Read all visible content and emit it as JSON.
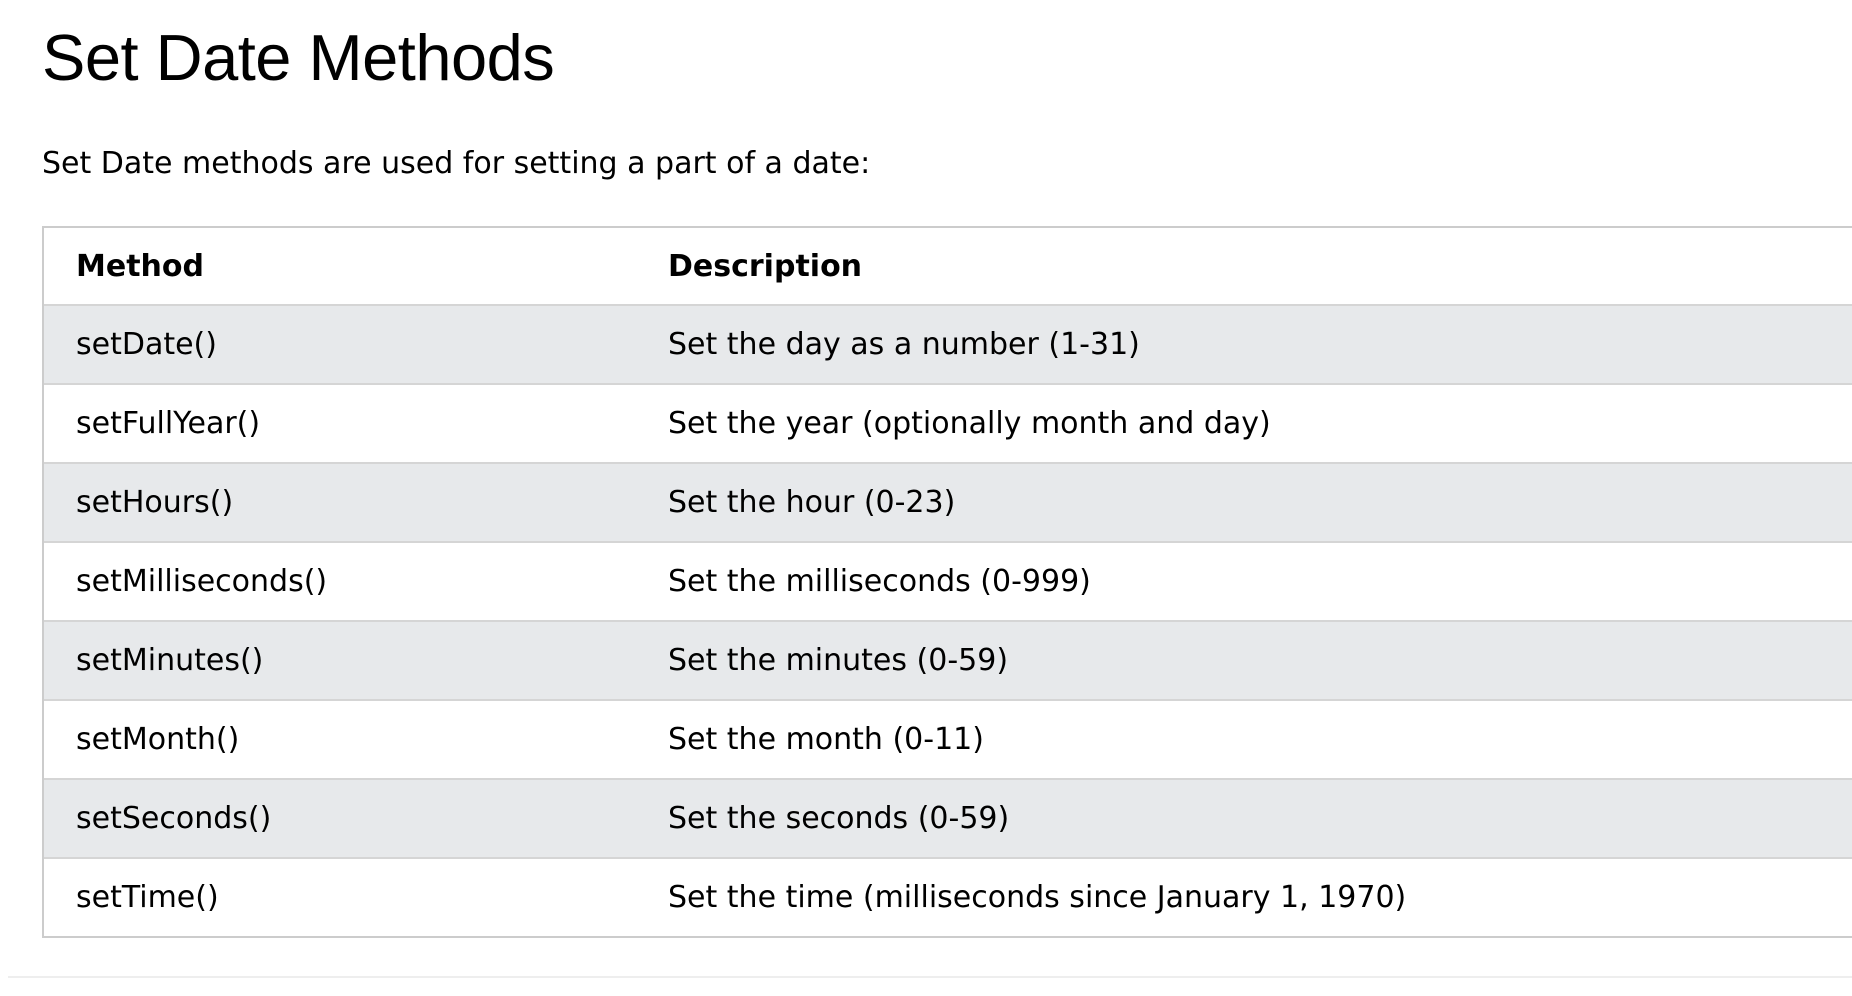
{
  "page": {
    "title": "Set Date Methods",
    "intro": "Set Date methods are used for setting a part of a date:"
  },
  "table": {
    "headers": [
      "Method",
      "Description"
    ],
    "rows": [
      {
        "method": "setDate()",
        "description": "Set the day as a number (1-31)"
      },
      {
        "method": "setFullYear()",
        "description": "Set the year (optionally month and day)"
      },
      {
        "method": "setHours()",
        "description": "Set the hour (0-23)"
      },
      {
        "method": "setMilliseconds()",
        "description": "Set the milliseconds (0-999)"
      },
      {
        "method": "setMinutes()",
        "description": "Set the minutes (0-59)"
      },
      {
        "method": "setMonth()",
        "description": "Set the month (0-11)"
      },
      {
        "method": "setSeconds()",
        "description": "Set the seconds (0-59)"
      },
      {
        "method": "setTime()",
        "description": "Set the time (milliseconds since January 1, 1970)"
      }
    ]
  },
  "colors": {
    "stripe": "#e7e9eb",
    "border": "#cccccc",
    "text": "#000000"
  }
}
